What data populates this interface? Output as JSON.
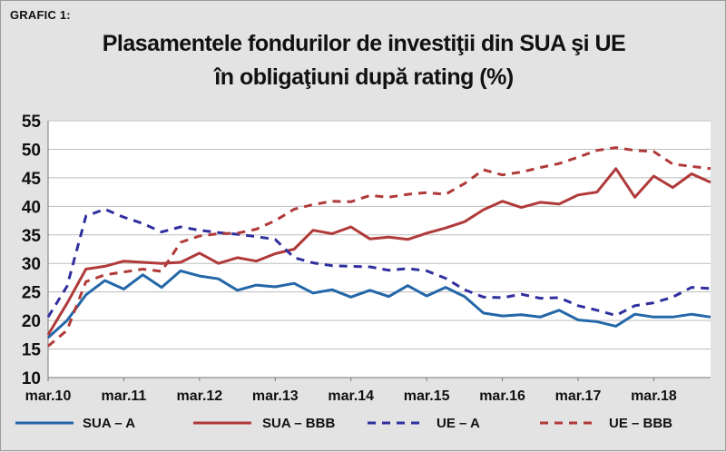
{
  "figure_label": "GRAFIC 1:",
  "title_lines": [
    "Plasamentele fondurilor de investiţii din SUA şi UE",
    "în obligaţiuni după rating (%)"
  ],
  "chart_data": {
    "type": "line",
    "title": "Plasamentele fondurilor de investiţii din SUA şi UE în obligaţiuni după rating (%)",
    "xlabel": "",
    "ylabel": "",
    "ylim": [
      10,
      55
    ],
    "yticks": [
      "55",
      "50",
      "45",
      "40",
      "35",
      "30",
      "25",
      "20",
      "15",
      "10"
    ],
    "xticks": [
      "mar.10",
      "mar.11",
      "mar.12",
      "mar.13",
      "mar.14",
      "mar.15",
      "mar.16",
      "mar.17",
      "mar.18"
    ],
    "grid": true,
    "legend_position": "bottom",
    "series": [
      {
        "name": "SUA – A",
        "color": "#2467a8",
        "style": "solid",
        "values": [
          17,
          20,
          24.5,
          27,
          25.5,
          28,
          25.8,
          28.7,
          27.8,
          27.3,
          25.3,
          26.2,
          25.9,
          26.5,
          24.8,
          25.4,
          24.1,
          25.3,
          24.2,
          26.1,
          24.3,
          25.8,
          24.2,
          21.3,
          20.8,
          21,
          20.6,
          21.8,
          20.1,
          19.8,
          19,
          21.1,
          20.6,
          20.6,
          21.1,
          20.6
        ]
      },
      {
        "name": "SUA – BBB",
        "color": "#b03a3a",
        "style": "solid",
        "values": [
          17.5,
          23,
          29,
          29.5,
          30.4,
          30.2,
          30,
          30.2,
          31.8,
          30,
          31,
          30.4,
          31.7,
          32.5,
          35.8,
          35.2,
          36.4,
          34.3,
          34.6,
          34.2,
          35.3,
          36.2,
          37.3,
          39.4,
          40.9,
          39.8,
          40.7,
          40.4,
          42,
          42.5,
          46.6,
          41.6,
          45.3,
          43.3,
          45.7,
          44.2
        ]
      },
      {
        "name": "UE – A",
        "color": "#2f2f9e",
        "style": "dashed",
        "values": [
          20.6,
          26,
          38.3,
          39.5,
          38.1,
          37,
          35.5,
          36.4,
          35.8,
          35.4,
          35.1,
          34.7,
          34.2,
          31,
          30.1,
          29.6,
          29.5,
          29.4,
          28.8,
          29.1,
          28.7,
          27.4,
          25.4,
          24.1,
          24,
          24.6,
          23.9,
          24,
          22.6,
          21.8,
          20.9,
          22.6,
          23.1,
          24.1,
          25.8,
          25.6
        ]
      },
      {
        "name": "UE – BBB",
        "color": "#b03a3a",
        "style": "dashed",
        "values": [
          15.5,
          18.3,
          26.8,
          28,
          28.5,
          29,
          28.6,
          33.7,
          34.8,
          35.2,
          35.3,
          36,
          37.5,
          39.5,
          40.3,
          40.9,
          40.8,
          41.9,
          41.6,
          42.1,
          42.4,
          42.1,
          44,
          46.4,
          45.5,
          46,
          46.8,
          47.5,
          48.6,
          49.8,
          50.3,
          49.8,
          49.6,
          47.4,
          47,
          46.6
        ]
      }
    ]
  }
}
